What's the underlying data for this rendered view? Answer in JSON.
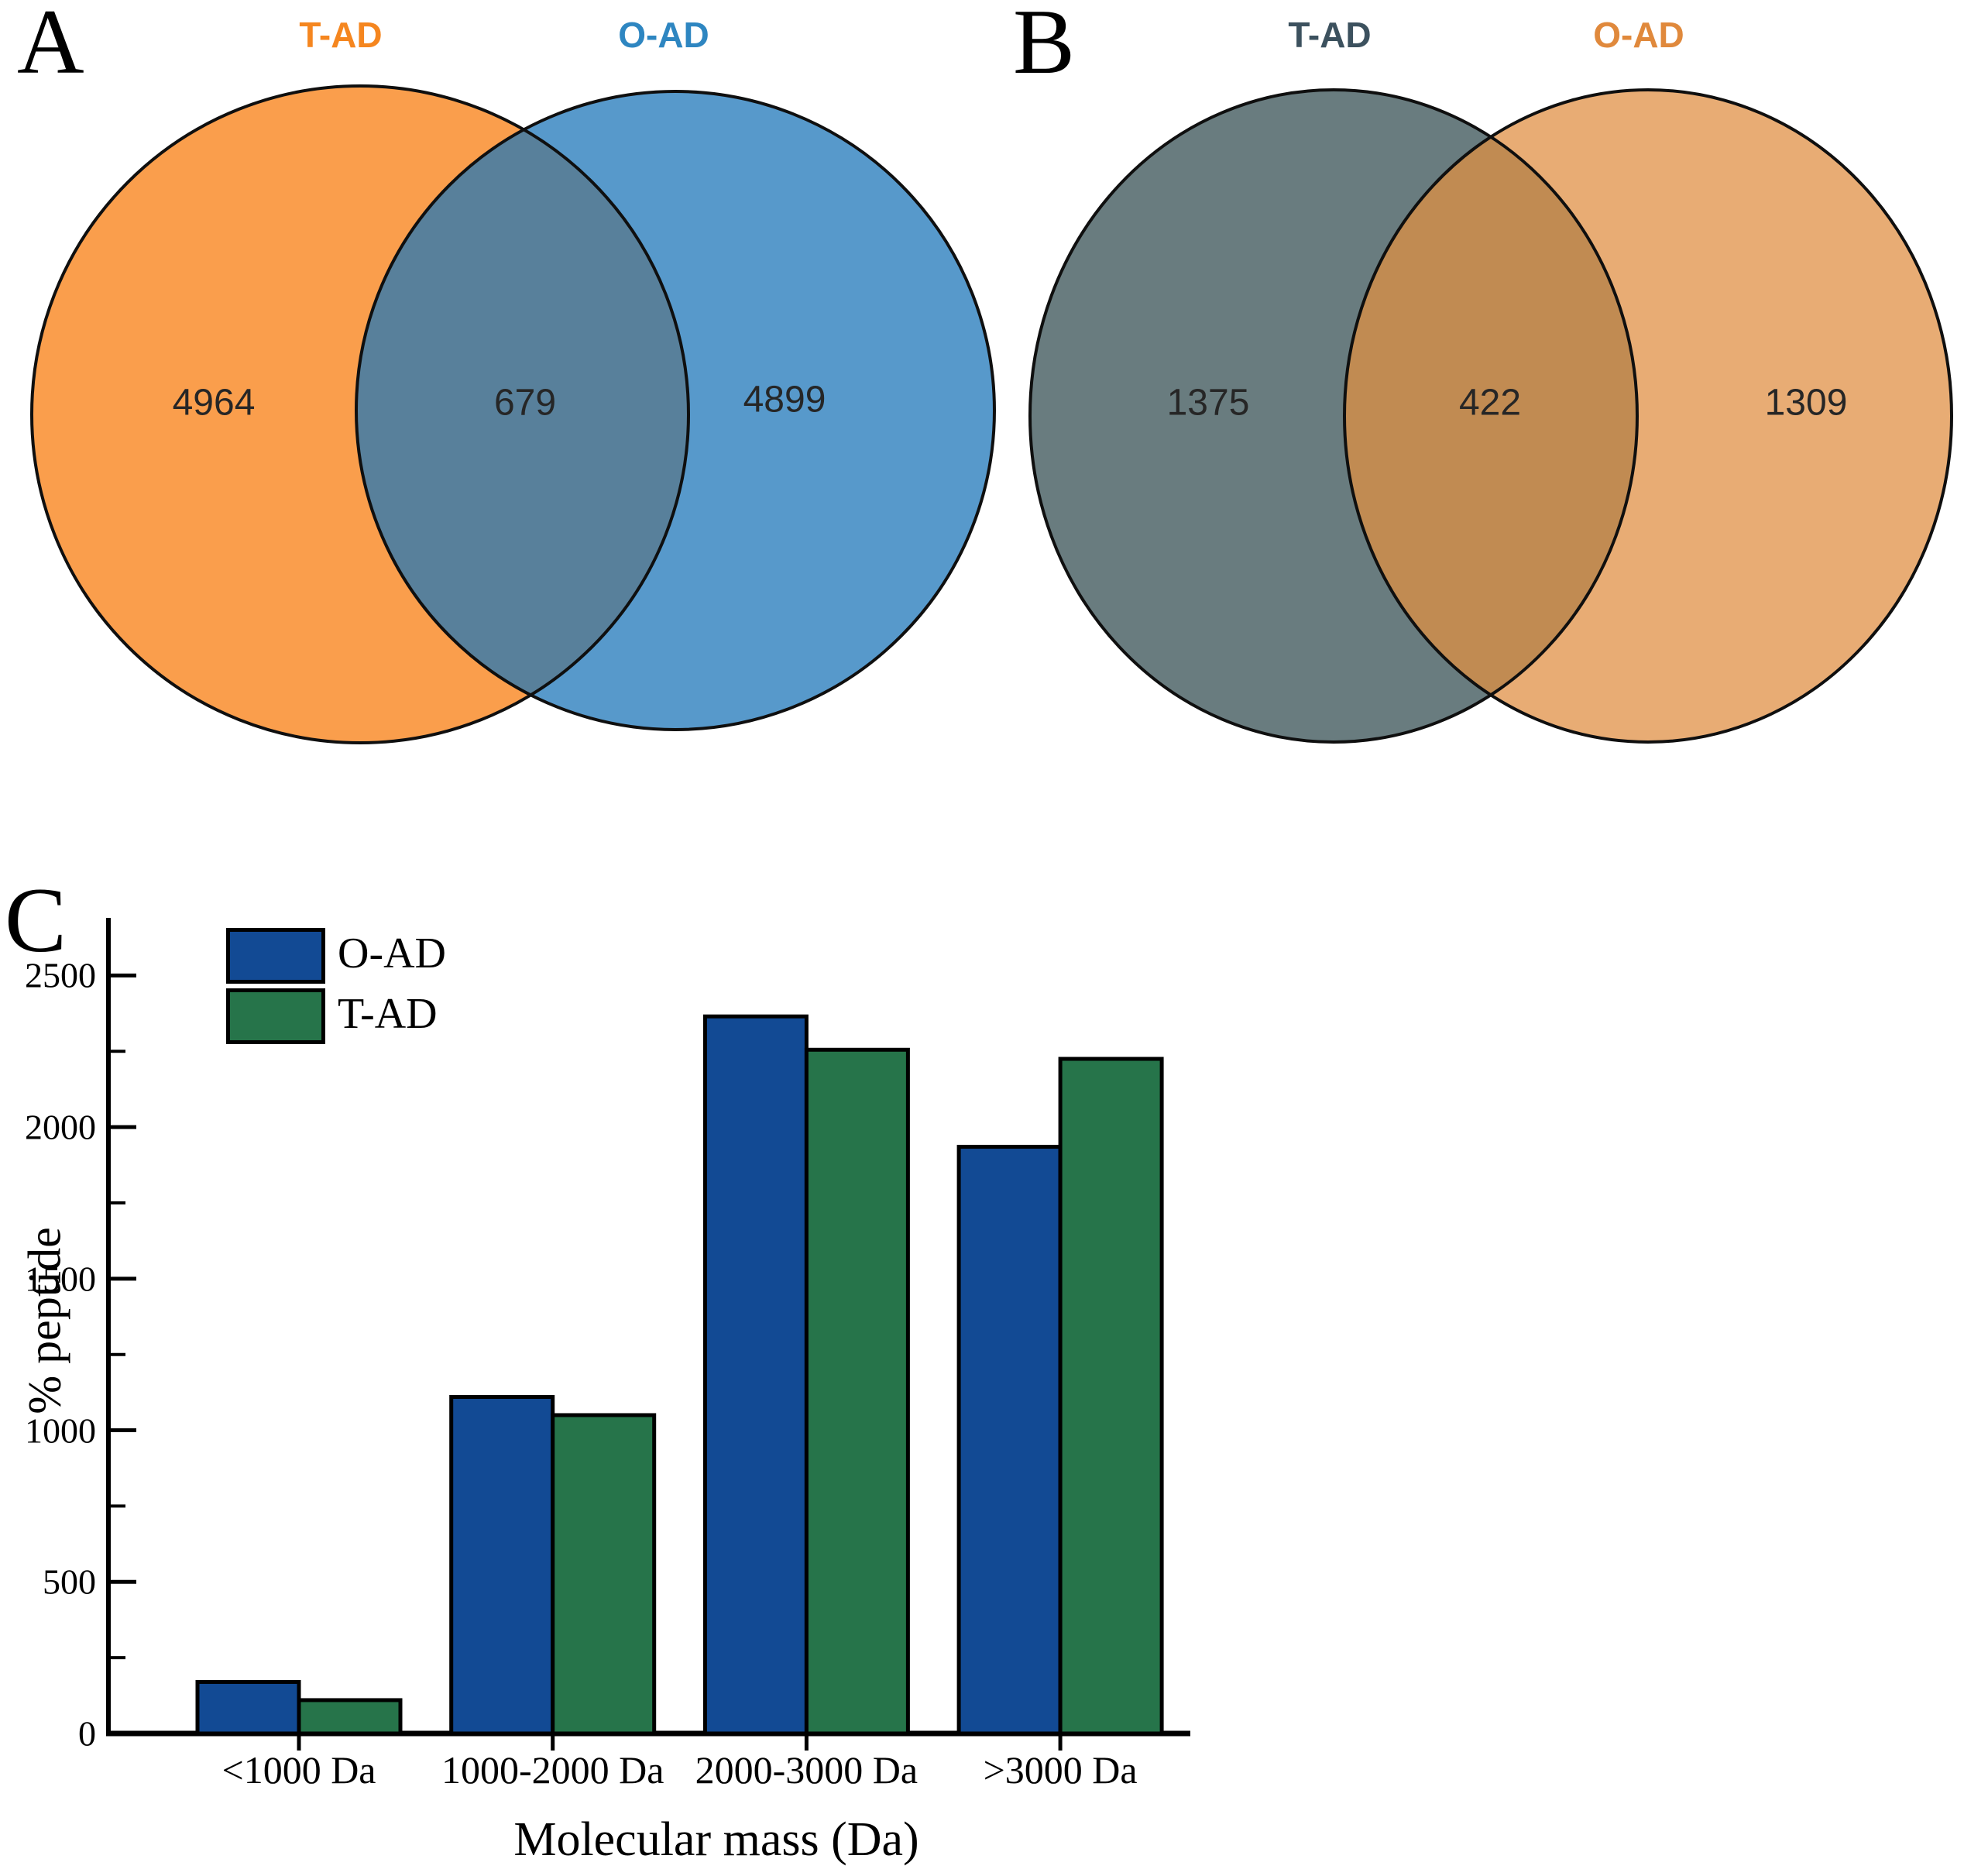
{
  "figure": {
    "panel_a": {
      "letter": "A",
      "left_circle_label": "T-AD",
      "right_circle_label": "O-AD",
      "left_only_count": "4964",
      "overlap_count": "679",
      "right_only_count": "4899",
      "colors": {
        "left_fill": "#FA9E4C",
        "right_fill": "#5799CB",
        "overlap_fill": "#58809B",
        "left_label": "#F5861F",
        "right_label": "#2E86C1",
        "outline": "#0F0F0F"
      }
    },
    "panel_b": {
      "letter": "B",
      "left_circle_label": "T-AD",
      "right_circle_label": "O-AD",
      "left_only_count": "1375",
      "overlap_count": "422",
      "right_only_count": "1309",
      "colors": {
        "left_fill": "#697C7F",
        "right_fill": "#E8AC74",
        "overlap_fill": "#C18B52",
        "left_label": "#3C515E",
        "right_label": "#E0893C",
        "outline": "#0F0F0F"
      }
    },
    "panel_c": {
      "letter": "C"
    }
  },
  "chart_data": {
    "type": "bar",
    "categories": [
      "<1000 Da",
      "1000-2000 Da",
      "2000-3000 Da",
      ">3000 Da"
    ],
    "series": [
      {
        "name": "O-AD",
        "color": "#124A94",
        "values": [
          170,
          1110,
          2365,
          1935
        ]
      },
      {
        "name": "T-AD",
        "color": "#26744A",
        "values": [
          110,
          1050,
          2255,
          2225
        ]
      }
    ],
    "xlabel": "Molecular mass (Da)",
    "ylabel": "% peptide",
    "ylim": [
      0,
      2690
    ],
    "yticks": [
      0,
      500,
      1000,
      1500,
      2000,
      2500
    ],
    "minor_tick_step": 250,
    "grid": false,
    "legend_position": "top-left",
    "bar_outline": "#000000"
  }
}
